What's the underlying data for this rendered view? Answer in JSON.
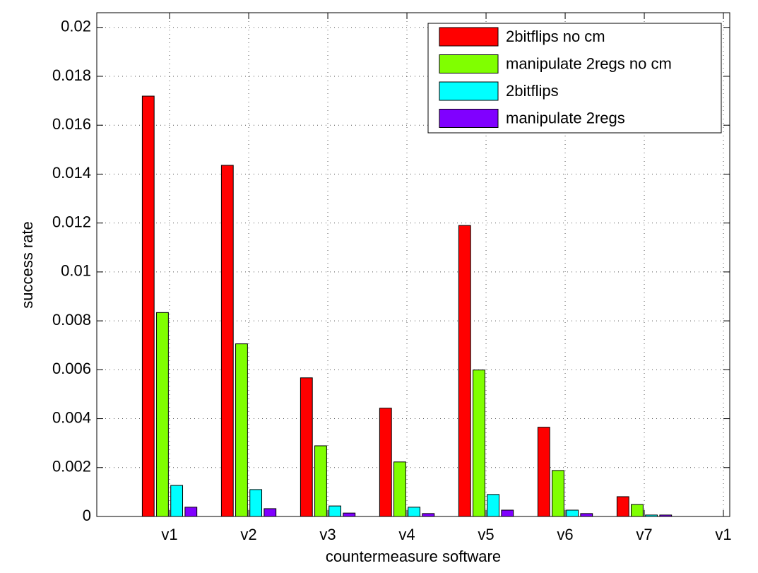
{
  "chart_data": {
    "type": "bar",
    "x": [
      1,
      2,
      3,
      4,
      5,
      6,
      7
    ],
    "series": [
      {
        "name": "2bitflips no cm",
        "color": "#ff0000",
        "values": [
          0.01719,
          0.01436,
          0.00567,
          0.00443,
          0.0119,
          0.00365,
          0.00081
        ]
      },
      {
        "name": "manipulate 2regs no cm",
        "color": "#80ff00",
        "values": [
          0.00834,
          0.00706,
          0.00289,
          0.00223,
          0.00599,
          0.00188,
          0.00049
        ]
      },
      {
        "name": "2bitflips",
        "color": "#00ffff",
        "values": [
          0.00127,
          0.0011,
          0.00043,
          0.00038,
          0.0009,
          0.00026,
          6e-05
        ]
      },
      {
        "name": "manipulate 2regs",
        "color": "#8000ff",
        "values": [
          0.00038,
          0.00032,
          0.00014,
          0.00012,
          0.00026,
          0.00012,
          6e-05
        ]
      }
    ],
    "xlabel": "countermeasure software",
    "ylabel": "success rate",
    "xlim": [
      0.08,
      8.08
    ],
    "xticks": [
      {
        "value": 1,
        "label": "v1"
      },
      {
        "value": 2,
        "label": "v2"
      },
      {
        "value": 3,
        "label": "v3"
      },
      {
        "value": 4,
        "label": "v4"
      },
      {
        "value": 5,
        "label": "v5"
      },
      {
        "value": 6,
        "label": "v6"
      },
      {
        "value": 7,
        "label": "v7"
      },
      {
        "value": 8,
        "label": "v1"
      }
    ],
    "ylim": [
      0,
      0.0206
    ],
    "yticks": [
      0,
      0.002,
      0.004,
      0.006,
      0.008,
      0.01,
      0.012,
      0.014,
      0.016,
      0.018,
      0.02
    ],
    "grid": true,
    "legend": "top-right"
  }
}
